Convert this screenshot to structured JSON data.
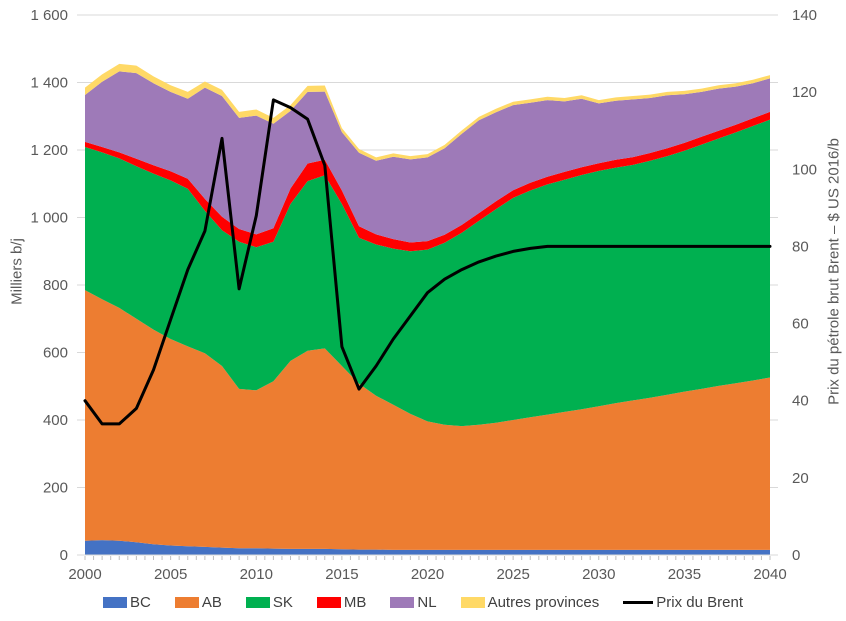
{
  "chart_data": {
    "type": "area",
    "subtype": "stacked-area-with-secondary-line",
    "title": "",
    "x_years": [
      2000,
      2001,
      2002,
      2003,
      2004,
      2005,
      2006,
      2007,
      2008,
      2009,
      2010,
      2011,
      2012,
      2013,
      2014,
      2015,
      2016,
      2017,
      2018,
      2019,
      2020,
      2021,
      2022,
      2023,
      2024,
      2025,
      2026,
      2027,
      2028,
      2029,
      2030,
      2031,
      2032,
      2033,
      2034,
      2035,
      2036,
      2037,
      2038,
      2039,
      2040
    ],
    "x_tick_labels": [
      "2000",
      "2005",
      "2010",
      "2015",
      "2020",
      "2025",
      "2030",
      "2035",
      "2040"
    ],
    "x_tick_values": [
      2000,
      2005,
      2010,
      2015,
      2020,
      2025,
      2030,
      2035,
      2040
    ],
    "left_axis": {
      "label": "Milliers b/j",
      "tick_labels": [
        "1 600",
        "1 400",
        "1 200",
        "1 000",
        "800",
        "600",
        "400",
        "200",
        "0"
      ],
      "tick_values": [
        1600,
        1400,
        1200,
        1000,
        800,
        600,
        400,
        200,
        0
      ],
      "min": 0,
      "max": 1600
    },
    "right_axis": {
      "label": "Prix du pétrole brut Brent – $ US 2016/b",
      "tick_labels": [
        "140",
        "120",
        "100",
        "80",
        "60",
        "40",
        "20",
        "0"
      ],
      "tick_values": [
        140,
        120,
        100,
        80,
        60,
        40,
        20,
        0
      ],
      "min": 0,
      "max": 140
    },
    "grid": "horizontal",
    "legend_position": "bottom",
    "colors": {
      "grid": "#d9d9d9",
      "tick": "#bfbfbf",
      "tick_text": "#595959",
      "legend_text": "#404040",
      "line": "#000000"
    },
    "series": [
      {
        "name": "BC",
        "color": "#4472c4",
        "values": [
          42,
          44,
          42,
          38,
          32,
          28,
          26,
          24,
          22,
          20,
          20,
          19,
          18,
          18,
          18,
          17,
          16,
          16,
          15,
          15,
          15,
          15,
          15,
          15,
          15,
          15,
          15,
          15,
          15,
          15,
          15,
          15,
          15,
          15,
          15,
          15,
          15,
          15,
          15,
          15,
          15
        ]
      },
      {
        "name": "AB",
        "color": "#ed7d31",
        "values": [
          743,
          714,
          690,
          662,
          636,
          612,
          592,
          574,
          538,
          472,
          468,
          496,
          557,
          587,
          594,
          543,
          492,
          456,
          430,
          403,
          381,
          371,
          367,
          371,
          377,
          385,
          393,
          401,
          409,
          417,
          426,
          435,
          443,
          451,
          460,
          469,
          477,
          486,
          494,
          502,
          511
        ]
      },
      {
        "name": "SK",
        "color": "#00b050",
        "values": [
          424,
          435,
          443,
          452,
          462,
          470,
          467,
          422,
          402,
          436,
          424,
          413,
          465,
          503,
          513,
          480,
          432,
          448,
          463,
          482,
          509,
          539,
          573,
          604,
          633,
          658,
          672,
          682,
          688,
          694,
          697,
          698,
          698,
          702,
          707,
          714,
          724,
          733,
          743,
          754,
          764
        ]
      },
      {
        "name": "MB",
        "color": "#ff0000",
        "values": [
          15,
          16,
          18,
          22,
          25,
          27,
          30,
          35,
          40,
          38,
          38,
          40,
          46,
          52,
          46,
          40,
          34,
          30,
          28,
          26,
          25,
          24,
          23,
          23,
          23,
          23,
          23,
          23,
          23,
          23,
          23,
          23,
          23,
          23,
          23,
          23,
          23,
          23,
          23,
          23,
          23
        ]
      },
      {
        "name": "NL",
        "color": "#9e7ab8",
        "values": [
          139,
          193,
          240,
          254,
          243,
          235,
          237,
          330,
          358,
          329,
          352,
          310,
          230,
          212,
          202,
          173,
          218,
          218,
          244,
          246,
          248,
          256,
          270,
          275,
          264,
          252,
          237,
          227,
          209,
          203,
          177,
          175,
          171,
          163,
          157,
          144,
          133,
          125,
          113,
          104,
          99
        ]
      },
      {
        "name": "Autres provinces",
        "color": "#ffd966",
        "values": [
          22,
          22,
          22,
          22,
          20,
          20,
          20,
          18,
          18,
          18,
          18,
          17,
          17,
          18,
          18,
          12,
          11,
          10,
          10,
          10,
          10,
          10,
          10,
          10,
          10,
          10,
          10,
          10,
          10,
          10,
          10,
          10,
          10,
          10,
          10,
          10,
          10,
          10,
          10,
          10,
          10
        ]
      }
    ],
    "line_series": {
      "name": "Prix du Brent",
      "color": "#000000",
      "axis": "right",
      "values": [
        40,
        34,
        34,
        38,
        48,
        61,
        74,
        84,
        108,
        69,
        88,
        118,
        116,
        113,
        101,
        54,
        43,
        49,
        56,
        62,
        68,
        71.5,
        74,
        76,
        77.5,
        78.7,
        79.5,
        80,
        80,
        80,
        80,
        80,
        80,
        80,
        80,
        80,
        80,
        80,
        80,
        80,
        80
      ]
    }
  },
  "legend": {
    "items": [
      {
        "label": "BC",
        "type": "box"
      },
      {
        "label": "AB",
        "type": "box"
      },
      {
        "label": "SK",
        "type": "box"
      },
      {
        "label": "MB",
        "type": "box"
      },
      {
        "label": "NL",
        "type": "box"
      },
      {
        "label": "Autres provinces",
        "type": "box"
      },
      {
        "label": "Prix du Brent",
        "type": "line"
      }
    ]
  }
}
